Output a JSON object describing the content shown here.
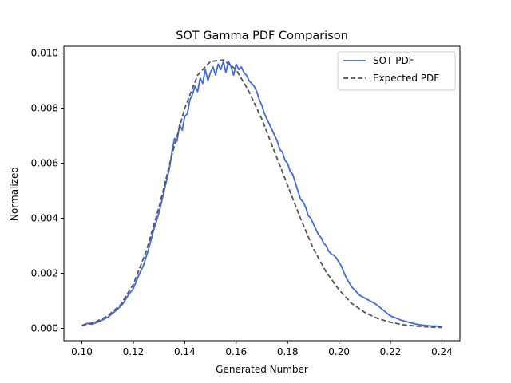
{
  "chart_data": {
    "type": "line",
    "title": "SOT Gamma PDF Comparison",
    "xlabel": "Generated Number",
    "ylabel": "Normalized",
    "xlim": [
      0.093,
      0.247
    ],
    "ylim": [
      -0.00045,
      0.01025
    ],
    "xticks": [
      0.1,
      0.12,
      0.14,
      0.16,
      0.18,
      0.2,
      0.22,
      0.24
    ],
    "xtick_labels": [
      "0.10",
      "0.12",
      "0.14",
      "0.16",
      "0.18",
      "0.20",
      "0.22",
      "0.24"
    ],
    "yticks": [
      0.0,
      0.002,
      0.004,
      0.006,
      0.008,
      0.01
    ],
    "ytick_labels": [
      "0.000",
      "0.002",
      "0.004",
      "0.006",
      "0.008",
      "0.010"
    ],
    "grid": false,
    "legend": {
      "position": "top-right"
    },
    "series": [
      {
        "name": "SOT PDF",
        "color": "#4169E1",
        "style": "solid",
        "x": [
          0.1,
          0.102,
          0.104,
          0.106,
          0.108,
          0.11,
          0.112,
          0.114,
          0.116,
          0.118,
          0.12,
          0.122,
          0.124,
          0.126,
          0.128,
          0.13,
          0.132,
          0.134,
          0.135,
          0.136,
          0.137,
          0.138,
          0.139,
          0.14,
          0.141,
          0.142,
          0.143,
          0.144,
          0.145,
          0.146,
          0.147,
          0.148,
          0.149,
          0.15,
          0.151,
          0.152,
          0.153,
          0.154,
          0.155,
          0.156,
          0.157,
          0.158,
          0.159,
          0.16,
          0.161,
          0.162,
          0.163,
          0.164,
          0.165,
          0.166,
          0.167,
          0.168,
          0.169,
          0.17,
          0.171,
          0.172,
          0.173,
          0.174,
          0.175,
          0.176,
          0.177,
          0.178,
          0.179,
          0.18,
          0.181,
          0.182,
          0.183,
          0.184,
          0.185,
          0.186,
          0.187,
          0.188,
          0.189,
          0.19,
          0.191,
          0.192,
          0.193,
          0.194,
          0.195,
          0.196,
          0.197,
          0.198,
          0.199,
          0.2,
          0.201,
          0.202,
          0.203,
          0.204,
          0.205,
          0.206,
          0.207,
          0.208,
          0.209,
          0.21,
          0.212,
          0.214,
          0.216,
          0.218,
          0.22,
          0.222,
          0.224,
          0.226,
          0.228,
          0.23,
          0.232,
          0.234,
          0.236,
          0.238,
          0.24
        ],
        "y": [
          0.0001,
          0.00018,
          0.00015,
          0.00022,
          0.0003,
          0.0004,
          0.00055,
          0.0007,
          0.0009,
          0.0012,
          0.00145,
          0.0019,
          0.0023,
          0.0029,
          0.0036,
          0.0042,
          0.005,
          0.0058,
          0.0064,
          0.0069,
          0.0068,
          0.0074,
          0.0072,
          0.0077,
          0.0078,
          0.0083,
          0.0085,
          0.0088,
          0.0086,
          0.0091,
          0.0089,
          0.0094,
          0.009,
          0.0093,
          0.0095,
          0.0092,
          0.0096,
          0.0094,
          0.0097,
          0.0093,
          0.0097,
          0.0095,
          0.0092,
          0.0096,
          0.0094,
          0.0095,
          0.0093,
          0.0092,
          0.009,
          0.0089,
          0.0088,
          0.0086,
          0.0083,
          0.0081,
          0.0078,
          0.0076,
          0.0074,
          0.0072,
          0.007,
          0.0068,
          0.0065,
          0.0064,
          0.0061,
          0.006,
          0.0057,
          0.0056,
          0.0053,
          0.005,
          0.0047,
          0.0046,
          0.0044,
          0.0041,
          0.004,
          0.0038,
          0.0036,
          0.0034,
          0.0033,
          0.0031,
          0.003,
          0.0028,
          0.0027,
          0.00265,
          0.00255,
          0.0024,
          0.00225,
          0.002,
          0.0018,
          0.00165,
          0.0015,
          0.0014,
          0.0013,
          0.0012,
          0.00115,
          0.0011,
          0.001,
          0.0009,
          0.00075,
          0.0006,
          0.00045,
          0.00038,
          0.0003,
          0.00025,
          0.0002,
          0.00015,
          0.00012,
          0.0001,
          8e-05,
          8e-05,
          6e-05
        ]
      },
      {
        "name": "Expected PDF",
        "color": "#555555",
        "style": "dashed",
        "x": [
          0.1,
          0.105,
          0.11,
          0.115,
          0.12,
          0.125,
          0.13,
          0.135,
          0.14,
          0.145,
          0.15,
          0.155,
          0.16,
          0.165,
          0.17,
          0.175,
          0.18,
          0.185,
          0.19,
          0.195,
          0.2,
          0.205,
          0.21,
          0.215,
          0.22,
          0.225,
          0.23,
          0.235,
          0.24
        ],
        "y": [
          0.0001,
          0.00022,
          0.00045,
          0.00085,
          0.0016,
          0.0028,
          0.0044,
          0.0063,
          0.008,
          0.0092,
          0.0097,
          0.00975,
          0.0094,
          0.0086,
          0.0076,
          0.0064,
          0.0052,
          0.004,
          0.0029,
          0.00205,
          0.0014,
          0.0009,
          0.00058,
          0.00036,
          0.00022,
          0.00013,
          8e-05,
          5e-05,
          3e-05
        ]
      }
    ]
  }
}
